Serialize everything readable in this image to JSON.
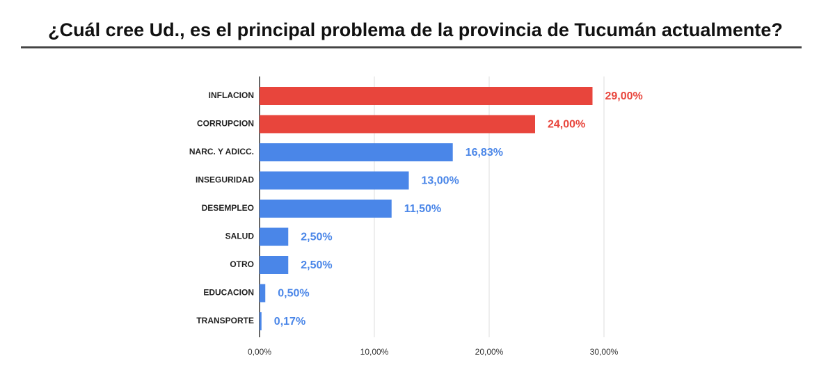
{
  "chart_data": {
    "type": "hbar",
    "title": "¿Cuál cree Ud., es el principal problema de la provincia de Tucumán actualmente?",
    "categories": [
      "INFLACION",
      "CORRUPCION",
      "NARC. Y ADICC.",
      "INSEGURIDAD",
      "DESEMPLEO",
      "SALUD",
      "OTRO",
      "EDUCACION",
      "TRANSPORTE"
    ],
    "values": [
      29,
      24,
      16.83,
      13,
      11.5,
      2.5,
      2.5,
      0.5,
      0.17
    ],
    "value_labels": [
      "29,00%",
      "24,00%",
      "16,83%",
      "13,00%",
      "11,50%",
      "2,50%",
      "2,50%",
      "0,50%",
      "0,17%"
    ],
    "colors": [
      "#e8453c",
      "#e8453c",
      "#4a86e8",
      "#4a86e8",
      "#4a86e8",
      "#4a86e8",
      "#4a86e8",
      "#4a86e8",
      "#4a86e8"
    ],
    "xlim": [
      0,
      30
    ],
    "xticks": [
      {
        "value": 0,
        "label": "0,00%"
      },
      {
        "value": 10,
        "label": "10,00%"
      },
      {
        "value": 20,
        "label": "20,00%"
      },
      {
        "value": 30,
        "label": "30,00%"
      }
    ],
    "grid": true
  }
}
